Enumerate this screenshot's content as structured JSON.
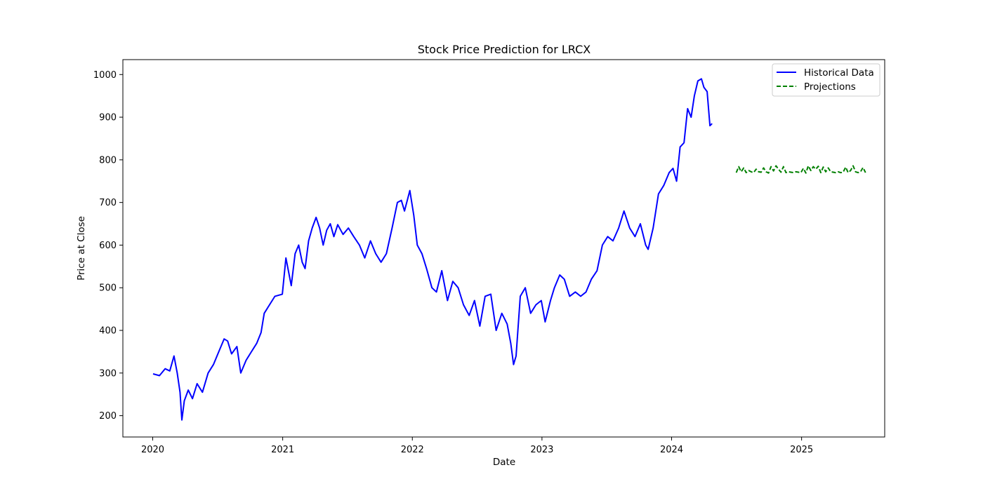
{
  "chart_data": {
    "type": "line",
    "title": "Stock Price Prediction for LRCX",
    "xlabel": "Date",
    "ylabel": "Price at Close",
    "xlim": [
      "2019-10-09",
      "2025-08-23"
    ],
    "ylim": [
      150,
      1035
    ],
    "x_ticks": [
      "2020",
      "2021",
      "2022",
      "2023",
      "2024",
      "2025"
    ],
    "x_tick_dates": [
      "2020-01-01",
      "2021-01-01",
      "2022-01-01",
      "2023-01-01",
      "2024-01-01",
      "2025-01-01"
    ],
    "y_ticks": [
      200,
      300,
      400,
      500,
      600,
      700,
      800,
      900,
      1000
    ],
    "grid": false,
    "legend": {
      "placement": "top-right",
      "entries": [
        {
          "label": "Historical Data",
          "color": "#0000ff",
          "style": "solid"
        },
        {
          "label": "Projections",
          "color": "#008000",
          "style": "dashed"
        }
      ]
    },
    "series": [
      {
        "name": "Historical Data",
        "color": "#0000ff",
        "style": "solid",
        "x": [
          "2020-01-02",
          "2020-01-20",
          "2020-02-05",
          "2020-02-18",
          "2020-03-01",
          "2020-03-10",
          "2020-03-18",
          "2020-03-23",
          "2020-03-30",
          "2020-04-10",
          "2020-04-22",
          "2020-05-05",
          "2020-05-20",
          "2020-06-05",
          "2020-06-20",
          "2020-07-05",
          "2020-07-20",
          "2020-07-30",
          "2020-08-10",
          "2020-08-25",
          "2020-09-05",
          "2020-09-20",
          "2020-10-05",
          "2020-10-20",
          "2020-11-01",
          "2020-11-10",
          "2020-11-25",
          "2020-12-10",
          "2020-12-31",
          "2021-01-10",
          "2021-01-25",
          "2021-02-05",
          "2021-02-15",
          "2021-02-25",
          "2021-03-05",
          "2021-03-15",
          "2021-03-25",
          "2021-04-05",
          "2021-04-15",
          "2021-04-25",
          "2021-05-05",
          "2021-05-15",
          "2021-05-25",
          "2021-06-05",
          "2021-06-20",
          "2021-07-05",
          "2021-07-20",
          "2021-08-05",
          "2021-08-20",
          "2021-09-05",
          "2021-09-20",
          "2021-10-05",
          "2021-10-20",
          "2021-11-05",
          "2021-11-20",
          "2021-12-01",
          "2021-12-10",
          "2021-12-25",
          "2022-01-05",
          "2022-01-15",
          "2022-01-28",
          "2022-02-10",
          "2022-02-25",
          "2022-03-10",
          "2022-03-25",
          "2022-04-10",
          "2022-04-25",
          "2022-05-10",
          "2022-05-25",
          "2022-06-10",
          "2022-06-25",
          "2022-07-10",
          "2022-07-25",
          "2022-08-10",
          "2022-08-25",
          "2022-09-10",
          "2022-09-25",
          "2022-10-05",
          "2022-10-13",
          "2022-10-20",
          "2022-11-01",
          "2022-11-15",
          "2022-11-30",
          "2022-12-15",
          "2022-12-30",
          "2023-01-10",
          "2023-01-25",
          "2023-02-05",
          "2023-02-20",
          "2023-03-05",
          "2023-03-20",
          "2023-04-05",
          "2023-04-20",
          "2023-05-05",
          "2023-05-20",
          "2023-06-05",
          "2023-06-20",
          "2023-07-05",
          "2023-07-20",
          "2023-08-05",
          "2023-08-20",
          "2023-09-05",
          "2023-09-20",
          "2023-10-05",
          "2023-10-20",
          "2023-10-27",
          "2023-11-10",
          "2023-11-25",
          "2023-12-10",
          "2023-12-25",
          "2024-01-05",
          "2024-01-15",
          "2024-01-25",
          "2024-02-05",
          "2024-02-15",
          "2024-02-25",
          "2024-03-05",
          "2024-03-15",
          "2024-03-25",
          "2024-04-01",
          "2024-04-10",
          "2024-04-18",
          "2024-04-24"
        ],
        "values": [
          298,
          294,
          310,
          305,
          340,
          300,
          255,
          190,
          235,
          260,
          240,
          275,
          255,
          300,
          320,
          350,
          380,
          375,
          345,
          362,
          300,
          330,
          350,
          370,
          395,
          440,
          460,
          480,
          485,
          570,
          505,
          580,
          600,
          560,
          545,
          610,
          640,
          665,
          640,
          600,
          635,
          650,
          620,
          648,
          625,
          640,
          620,
          600,
          570,
          610,
          580,
          560,
          580,
          640,
          700,
          705,
          680,
          728,
          670,
          600,
          580,
          545,
          500,
          490,
          540,
          470,
          515,
          500,
          460,
          435,
          470,
          410,
          480,
          485,
          400,
          440,
          415,
          370,
          320,
          340,
          480,
          500,
          440,
          460,
          470,
          420,
          470,
          500,
          530,
          520,
          480,
          490,
          480,
          490,
          520,
          540,
          600,
          620,
          610,
          640,
          680,
          640,
          620,
          650,
          600,
          590,
          640,
          720,
          740,
          770,
          780,
          750,
          830,
          840,
          920,
          900,
          950,
          985,
          990,
          970,
          960,
          880,
          885
        ]
      },
      {
        "name": "Projections",
        "color": "#008000",
        "style": "dashed",
        "x": [
          "2024-07-01",
          "2024-07-08",
          "2024-07-15",
          "2024-07-22",
          "2024-07-29",
          "2024-08-05",
          "2024-08-12",
          "2024-08-19",
          "2024-08-26",
          "2024-09-02",
          "2024-09-09",
          "2024-09-16",
          "2024-09-23",
          "2024-09-30",
          "2024-10-07",
          "2024-10-14",
          "2024-10-21",
          "2024-10-28",
          "2024-11-04",
          "2024-11-11",
          "2024-11-18",
          "2024-11-25",
          "2024-12-02",
          "2024-12-09",
          "2024-12-16",
          "2024-12-23",
          "2024-12-30",
          "2025-01-06",
          "2025-01-13",
          "2025-01-20",
          "2025-01-27",
          "2025-02-03",
          "2025-02-10",
          "2025-02-17",
          "2025-02-24",
          "2025-03-03",
          "2025-03-10",
          "2025-03-17",
          "2025-03-24",
          "2025-03-31",
          "2025-04-07",
          "2025-04-14",
          "2025-04-21",
          "2025-04-28",
          "2025-05-05",
          "2025-05-12",
          "2025-05-19",
          "2025-05-26",
          "2025-06-02",
          "2025-06-09",
          "2025-06-16",
          "2025-06-23",
          "2025-06-30"
        ],
        "values": [
          770,
          784,
          772,
          781,
          770,
          775,
          772,
          770,
          778,
          772,
          771,
          781,
          772,
          769,
          784,
          774,
          786,
          778,
          771,
          784,
          770,
          772,
          771,
          770,
          772,
          771,
          770,
          780,
          769,
          786,
          775,
          784,
          778,
          785,
          770,
          783,
          772,
          781,
          772,
          771,
          770,
          772,
          770,
          771,
          783,
          770,
          775,
          786,
          772,
          770,
          772,
          782,
          770
        ]
      }
    ]
  }
}
